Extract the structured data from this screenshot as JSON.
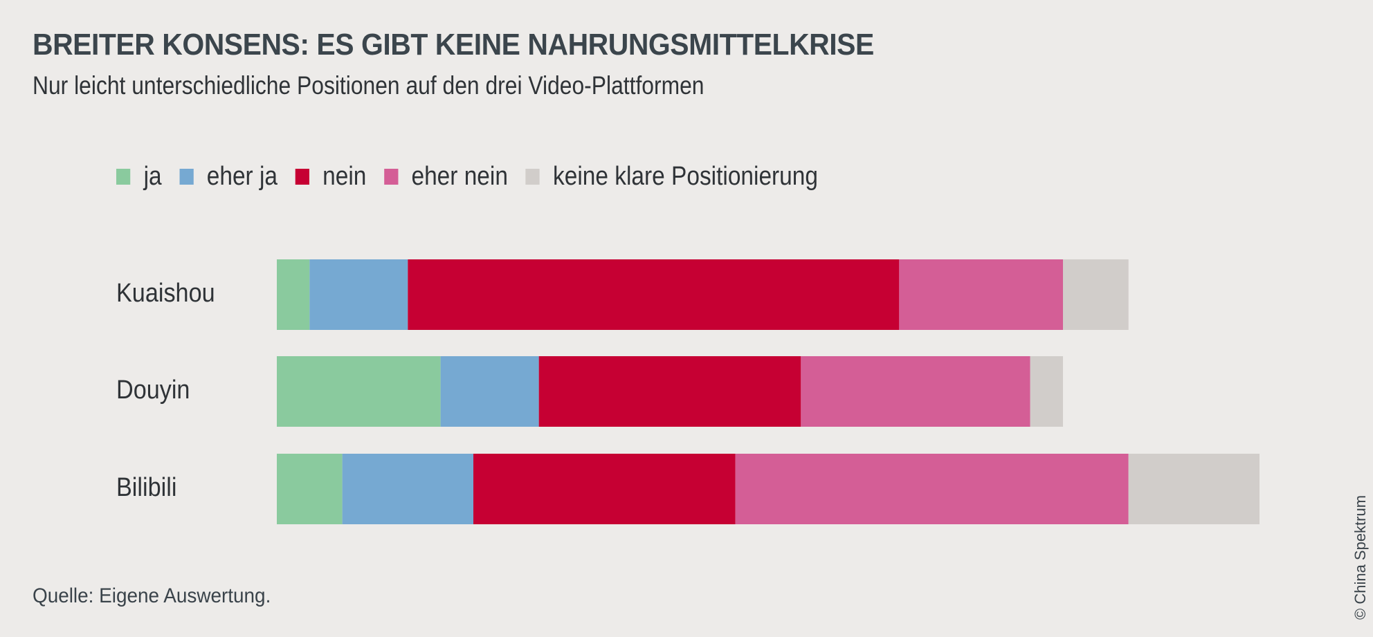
{
  "title": "BREITER KONSENS: ES GIBT KEINE NAHRUNGSMITTELKRISE",
  "subtitle": "Nur leicht unterschiedliche Positionen auf den drei Video-Plattformen",
  "source": "Quelle: Eigene Auswertung.",
  "copyright": "© China Spektrum",
  "chart_data": {
    "type": "bar",
    "orientation": "horizontal",
    "stacked": true,
    "title": "BREITER KONSENS: ES GIBT KEINE NAHRUNGSMITTELKRISE",
    "subtitle": "Nur leicht unterschiedliche Positionen auf den drei Video-Plattformen",
    "xlabel": "",
    "ylabel": "",
    "grid": false,
    "legend_position": "top",
    "categories": [
      "Kuaishou",
      "Douyin",
      "Bilibili"
    ],
    "series": [
      {
        "name": "ja",
        "color": "#8aca9e",
        "values": [
          1,
          5,
          2
        ]
      },
      {
        "name": "eher ja",
        "color": "#76a9d2",
        "values": [
          3,
          3,
          4
        ]
      },
      {
        "name": "nein",
        "color": "#c60033",
        "values": [
          15,
          8,
          8
        ]
      },
      {
        "name": "eher nein",
        "color": "#d45e96",
        "values": [
          5,
          7,
          12
        ]
      },
      {
        "name": "keine klare Positionierung",
        "color": "#d1cdca",
        "values": [
          2,
          1,
          4
        ]
      }
    ],
    "xlim": [
      0,
      30
    ]
  }
}
